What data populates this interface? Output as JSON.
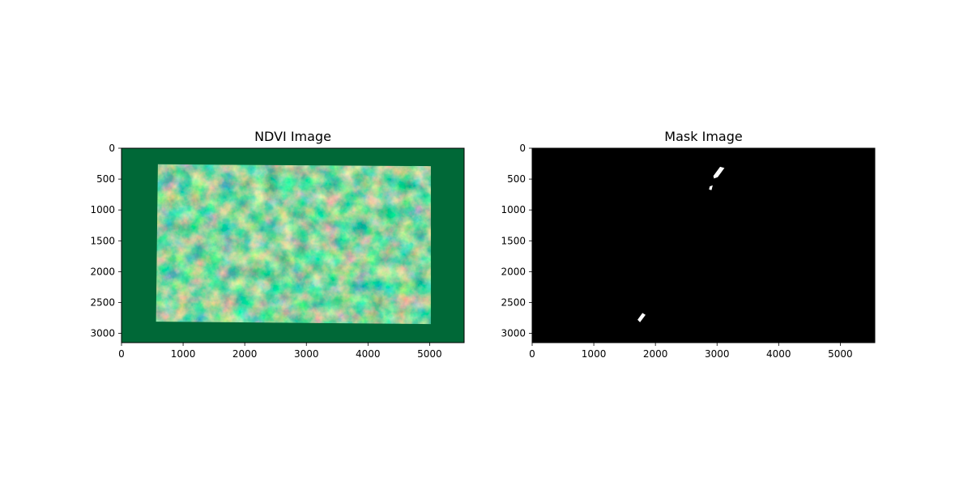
{
  "chart_data": [
    {
      "type": "heatmap",
      "title": "NDVI Image",
      "colormap": "RdYlGn",
      "image_extent": {
        "width": 5560,
        "height": 3150
      },
      "xlim": [
        0,
        5560
      ],
      "ylim": [
        3150,
        0
      ],
      "xticks": [
        0,
        1000,
        2000,
        3000,
        4000,
        5000
      ],
      "yticks": [
        0,
        500,
        1000,
        1500,
        2000,
        2500,
        3000
      ],
      "xtick_labels": [
        "0",
        "1000",
        "2000",
        "3000",
        "4000",
        "5000"
      ],
      "ytick_labels": [
        "0",
        "500",
        "1000",
        "1500",
        "2000",
        "2500",
        "3000"
      ],
      "background_color": "#006837",
      "scene_footprint": [
        [
          590,
          260
        ],
        [
          5020,
          290
        ],
        [
          5020,
          2850
        ],
        [
          560,
          2810
        ]
      ],
      "colors": {
        "high": "#1a9850",
        "mid_high": "#66bd63",
        "mid": "#d9ef8b",
        "low_mid": "#fee08b",
        "low": "#d73027"
      }
    },
    {
      "type": "heatmap",
      "title": "Mask Image",
      "colormap": "gray",
      "image_extent": {
        "width": 5560,
        "height": 3150
      },
      "xlim": [
        0,
        5560
      ],
      "ylim": [
        3150,
        0
      ],
      "xticks": [
        0,
        1000,
        2000,
        3000,
        4000,
        5000
      ],
      "yticks": [
        0,
        500,
        1000,
        1500,
        2000,
        2500,
        3000
      ],
      "xtick_labels": [
        "0",
        "1000",
        "2000",
        "3000",
        "4000",
        "5000"
      ],
      "ytick_labels": [
        "0",
        "500",
        "1000",
        "1500",
        "2000",
        "2500",
        "3000"
      ],
      "background_color": "#000000",
      "mask_regions": [
        [
          [
            2940,
            450
          ],
          [
            3050,
            300
          ],
          [
            3120,
            320
          ],
          [
            3010,
            470
          ],
          [
            2950,
            490
          ]
        ],
        [
          [
            2880,
            620
          ],
          [
            2930,
            600
          ],
          [
            2910,
            680
          ],
          [
            2870,
            670
          ]
        ],
        [
          [
            1710,
            2780
          ],
          [
            1790,
            2670
          ],
          [
            1840,
            2700
          ],
          [
            1750,
            2820
          ]
        ]
      ]
    }
  ]
}
